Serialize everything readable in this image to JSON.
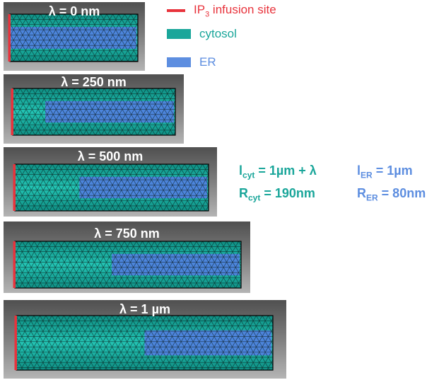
{
  "colors": {
    "infusion": "#e8333c",
    "cytosol": "#1aa69a",
    "cytosol_fill": "#23c4b4",
    "er": "#5d8ee0",
    "er_fill": "#5080e0",
    "mesh": "#0b1a18"
  },
  "legend": {
    "infusion_prefix": "IP",
    "infusion_sub": "3",
    "infusion_suffix": " infusion site",
    "cytosol": "cytosol",
    "er": "ER"
  },
  "panels": [
    {
      "label": "λ = 0 nm",
      "lambda_nm": 0
    },
    {
      "label": "λ = 250 nm",
      "lambda_nm": 250
    },
    {
      "label": "λ = 500 nm",
      "lambda_nm": 500
    },
    {
      "label": "λ = 750 nm",
      "lambda_nm": 750
    },
    {
      "label": "λ = 1 µm",
      "lambda_nm": 1000
    }
  ],
  "equations": {
    "l_cyt": {
      "sym": "l",
      "sub": "cyt",
      "rest": " = 1µm + λ"
    },
    "r_cyt": {
      "sym": "R",
      "sub": "cyt",
      "rest": " = 190nm"
    },
    "l_er": {
      "sym": "l",
      "sub": "ER",
      "rest": " = 1µm"
    },
    "r_er": {
      "sym": "R",
      "sub": "ER",
      "rest": " = 80nm"
    }
  }
}
